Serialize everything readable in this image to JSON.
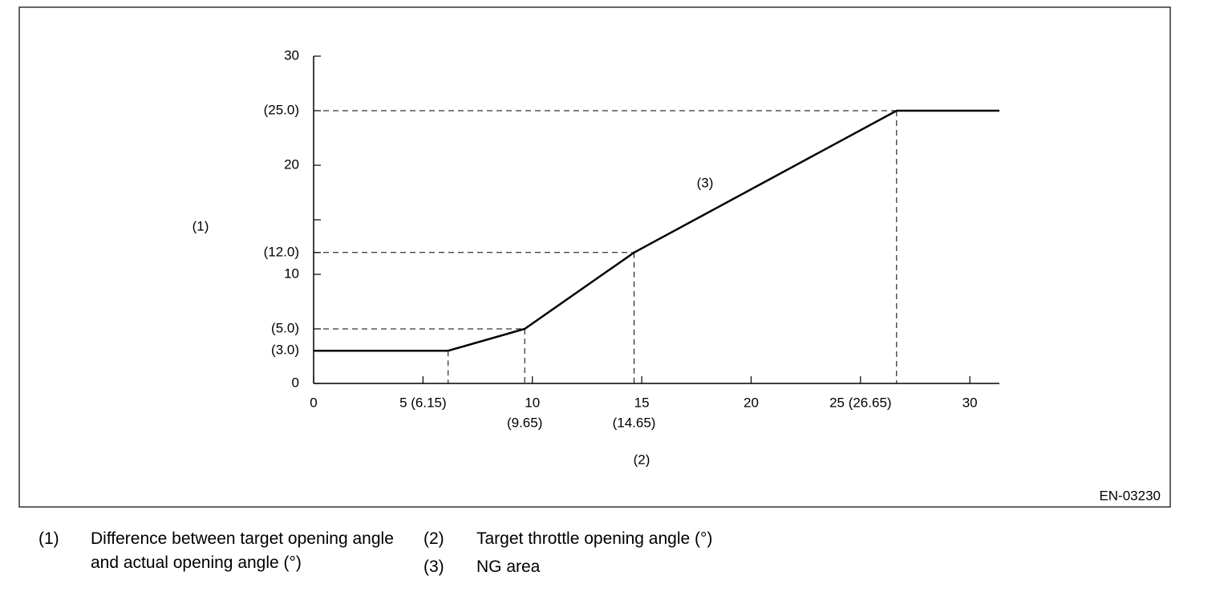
{
  "chart_data": {
    "type": "line",
    "x": [
      0,
      6.15,
      9.65,
      14.65,
      26.65,
      31.35
    ],
    "values": [
      3,
      3,
      5,
      12,
      25,
      25
    ],
    "color": "#000000",
    "xlim": [
      0,
      31.35
    ],
    "ylim": [
      0,
      30
    ],
    "xticks": [
      0,
      {
        "value": 5,
        "label": "5 (6.15)"
      },
      10,
      15,
      20,
      {
        "value": 25,
        "label": "25 (26.65)"
      },
      30
    ],
    "yticks": [
      0,
      {
        "value": 3,
        "label": "(3.0)"
      },
      {
        "value": 5,
        "label": "(5.0)"
      },
      10,
      {
        "value": 12,
        "label": "(12.0)"
      },
      {
        "value": 15,
        "label": null
      },
      20,
      {
        "value": 25,
        "label": "(25.0)"
      },
      30
    ],
    "x_annotations": [
      {
        "value": 9.65,
        "label": "(9.65)"
      },
      {
        "value": 14.65,
        "label": "(14.65)"
      }
    ],
    "y_label": "(1)",
    "x_label": "(2)",
    "area_label": "(3)",
    "figure_id": "EN-03230",
    "notes": [
      {
        "number": "(1)",
        "text": "Difference between target opening angle and actual opening angle (°)"
      },
      {
        "number": "(2)",
        "text": "Target throttle opening angle (°)"
      },
      {
        "number": "(3)",
        "text": "NG area"
      }
    ]
  }
}
